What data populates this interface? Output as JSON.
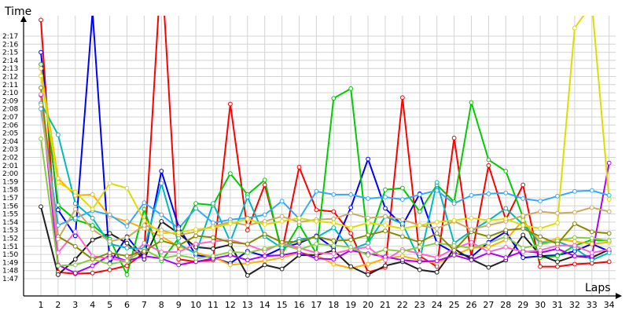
{
  "chart_data": {
    "type": "line",
    "xlabel": "Laps",
    "ylabel": "Time",
    "x": [
      1,
      2,
      3,
      4,
      5,
      6,
      7,
      8,
      9,
      10,
      11,
      12,
      13,
      14,
      15,
      16,
      17,
      18,
      19,
      20,
      21,
      22,
      23,
      24,
      25,
      26,
      27,
      28,
      29,
      30,
      31,
      32,
      33,
      34
    ],
    "x_tick_labels": [
      "1",
      "2",
      "3",
      "4",
      "5",
      "6",
      "7",
      "8",
      "9",
      "10",
      "11",
      "12",
      "13",
      "14",
      "15",
      "16",
      "17",
      "18",
      "19",
      "20",
      "21",
      "22",
      "23",
      "24",
      "25",
      "26",
      "27",
      "28",
      "29",
      "30",
      "31",
      "32",
      "33",
      "34"
    ],
    "y_tick_labels": [
      "1:47",
      "1:48",
      "1:49",
      "1:50",
      "1:51",
      "1:52",
      "1:53",
      "1:54",
      "1:55",
      "1:56",
      "1:57",
      "1:58",
      "1:59",
      "2:00",
      "2:01",
      "2:02",
      "2:03",
      "2:04",
      "2:05",
      "2:06",
      "2:07",
      "2:08",
      "2:09",
      "2:10",
      "2:11",
      "2:12",
      "2:13",
      "2:14",
      "2:15",
      "2:16",
      "2:17"
    ],
    "ylim_seconds": [
      106,
      143
    ],
    "grid": true,
    "series": [
      {
        "color": "#ff0000",
        "values": [
          139,
          107.8,
          107.6,
          107.7,
          108.1,
          108.6,
          110.2,
          146,
          109.4,
          109.1,
          109.3,
          128.6,
          113,
          118.6,
          110.4,
          120.8,
          115.5,
          115.3,
          112.6,
          107.8,
          108.4,
          129.4,
          109.8,
          108.5,
          124.4,
          109.7,
          121,
          114.3,
          118.6,
          108.5,
          108.5,
          108.8,
          108.9,
          109.1
        ]
      },
      {
        "color": "#0000ff",
        "values": [
          135,
          115.5,
          112.3,
          140,
          108.9,
          112.2,
          109.6,
          120.3,
          113.4,
          109.9,
          109.6,
          108.9,
          110.4,
          109.8,
          110.8,
          111.4,
          112.3,
          110.8,
          115.8,
          121.8,
          115.7,
          113.6,
          117.5,
          111.4,
          110.2,
          109.7,
          111.5,
          112.8,
          109.6,
          109.8,
          109.9,
          110.4,
          111.3,
          110.4
        ]
      },
      {
        "color": "#00cc00",
        "values": [
          133.5,
          116.1,
          114.3,
          113.6,
          111.9,
          107.5,
          115.6,
          109.2,
          112,
          116.3,
          116.1,
          120,
          117.4,
          119.2,
          110.1,
          113.7,
          110.1,
          129.3,
          130.5,
          111.5,
          118,
          118.2,
          115.3,
          118.6,
          116.5,
          128.8,
          121.7,
          120.3,
          114.6,
          109.6,
          109.8,
          111.1,
          111.8,
          111.7
        ]
      },
      {
        "color": "#ffb000",
        "values": [
          133,
          119.4,
          117.3,
          117.4,
          114.7,
          114.1,
          113.2,
          112.2,
          111,
          110.2,
          109.7,
          108.7,
          108.9,
          109.2,
          109.6,
          110.2,
          109.9,
          108.8,
          108.3,
          108.8,
          109.5,
          109.8,
          109.3,
          108.9,
          109.9,
          110.8,
          110.9,
          111.8,
          114.2,
          111.5,
          111.9,
          111.6,
          111.3,
          111.5
        ]
      },
      {
        "color": "#202020",
        "values": [
          115.9,
          107.5,
          109.4,
          111.8,
          112.6,
          111.4,
          109.4,
          114.1,
          112.6,
          110.9,
          110.7,
          111.2,
          107.4,
          108.7,
          108.2,
          109.9,
          109.9,
          110.5,
          108.5,
          107.5,
          108.6,
          109.1,
          108.1,
          107.8,
          110.7,
          109.4,
          108.4,
          109.3,
          112.4,
          109.9,
          109.1,
          109.8,
          109.6,
          110.6
        ]
      },
      {
        "color": "#00bbbb",
        "values": [
          128.7,
          124.8,
          116.3,
          114.5,
          111.3,
          110.8,
          110.7,
          118.8,
          111.3,
          110.1,
          116.3,
          111.6,
          117.1,
          112.2,
          110.8,
          111.9,
          112.1,
          113.3,
          110.6,
          111.4,
          114.7,
          113.8,
          109.3,
          118.9,
          111.4,
          112.9,
          114.2,
          115.7,
          113.7,
          111.4,
          111.6,
          110.8,
          109.3,
          110.2
        ]
      },
      {
        "color": "#aa00ff",
        "values": [
          129.7,
          108.7,
          107.7,
          108.6,
          109.9,
          109.2,
          109.8,
          109.5,
          108.7,
          109.1,
          109.5,
          109.9,
          109.3,
          109.8,
          109.9,
          110.3,
          109.5,
          109.4,
          110.5,
          110.1,
          109.7,
          109.3,
          109.1,
          109.2,
          109.9,
          109.3,
          110.2,
          109.6,
          110.4,
          110.2,
          110.7,
          109.8,
          109.8,
          121.3
        ]
      },
      {
        "color": "#ff66cc",
        "values": [
          129.8,
          110.2,
          112.8,
          109.8,
          109.5,
          109.2,
          111.4,
          110.3,
          110.3,
          111.3,
          111.6,
          111.8,
          111.2,
          110.4,
          111.4,
          110.8,
          110.2,
          110.1,
          110.6,
          110.9,
          109.3,
          110.6,
          110.1,
          109.6,
          110.7,
          111.5,
          110.3,
          110.9,
          110.3,
          110.5,
          111.1,
          111.1,
          110.2,
          110.6
        ]
      },
      {
        "color": "#88cc44",
        "values": [
          124.3,
          108.6,
          108.7,
          109.4,
          108.8,
          109.2,
          110.6,
          109.5,
          109.9,
          109.5,
          109.8,
          110.3,
          110.2,
          110.7,
          111.2,
          110.6,
          111.3,
          111.1,
          110.9,
          109.9,
          110.6,
          110.4,
          110.9,
          111.4,
          111.1,
          110.8,
          111.4,
          112.2,
          110.8,
          111.2,
          111.7,
          112.1,
          112,
          111.7
        ]
      },
      {
        "color": "#888800",
        "values": [
          130.6,
          112.2,
          111,
          109.4,
          110.2,
          109.8,
          110.4,
          111.7,
          111.1,
          112.3,
          112.1,
          111.5,
          111.3,
          112.5,
          111.5,
          111.6,
          112.2,
          111.7,
          111.8,
          112.4,
          112.9,
          112.2,
          111.5,
          112.6,
          110.5,
          112.8,
          112.2,
          113,
          113.2,
          112.2,
          111.3,
          113.8,
          112.8,
          112.6
        ]
      },
      {
        "color": "#33aaff",
        "values": [
          128,
          113.6,
          114.5,
          115.4,
          114.9,
          113.5,
          116.4,
          114.9,
          113.2,
          115.7,
          113.9,
          114.3,
          114.5,
          114.9,
          116.6,
          114.4,
          117.8,
          117.4,
          117.4,
          116.9,
          117.1,
          116.8,
          117.4,
          117.9,
          116.3,
          117.3,
          117.5,
          117.6,
          116.9,
          116.6,
          117.2,
          117.8,
          117.9,
          117.3
        ]
      },
      {
        "color": "#ccaa66",
        "values": [
          128.5,
          111.9,
          115.6,
          113.1,
          111.6,
          112.1,
          113.6,
          113,
          112.4,
          112.8,
          113.5,
          114,
          113.6,
          114.1,
          114.7,
          114,
          114.3,
          114.4,
          115.1,
          114.5,
          114.7,
          114.3,
          113.6,
          113.2,
          114.1,
          113.1,
          113.6,
          114.1,
          114.8,
          115.3,
          115.1,
          115.2,
          115.8,
          115.3
        ]
      },
      {
        "color": "#dddd00",
        "values": [
          132.1,
          118.9,
          117.7,
          115.6,
          118.8,
          118.2,
          114.2,
          112.6,
          112.7,
          113.1,
          113.3,
          113.8,
          114.4,
          113.7,
          114.1,
          114.5,
          114.1,
          113.9,
          113.3,
          113.9,
          113.6,
          113.2,
          113.6,
          114,
          114.2,
          114.5,
          114.2,
          114.4,
          113.6,
          113.2,
          113.9,
          138,
          141,
          116.8
        ]
      }
    ]
  }
}
